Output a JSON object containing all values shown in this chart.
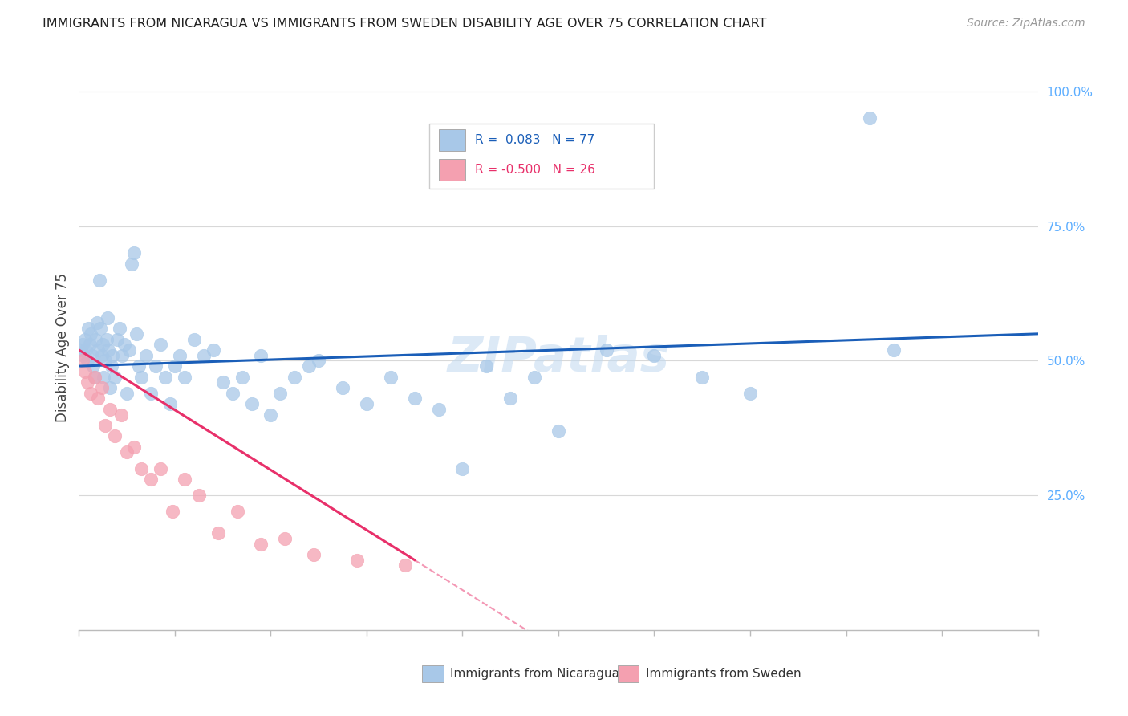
{
  "title": "IMMIGRANTS FROM NICARAGUA VS IMMIGRANTS FROM SWEDEN DISABILITY AGE OVER 75 CORRELATION CHART",
  "source": "Source: ZipAtlas.com",
  "ylabel": "Disability Age Over 75",
  "xlim": [
    0,
    20
  ],
  "ylim": [
    0,
    105
  ],
  "r_nicaragua": 0.083,
  "n_nicaragua": 77,
  "r_sweden": -0.5,
  "n_sweden": 26,
  "color_nicaragua": "#a8c8e8",
  "color_sweden": "#f4a0b0",
  "trend_color_nicaragua": "#1a5eb8",
  "trend_color_sweden": "#e8306a",
  "watermark": "ZIPatlas",
  "nic_x": [
    0.05,
    0.08,
    0.1,
    0.12,
    0.15,
    0.18,
    0.2,
    0.22,
    0.25,
    0.28,
    0.3,
    0.32,
    0.35,
    0.38,
    0.4,
    0.42,
    0.45,
    0.48,
    0.5,
    0.52,
    0.55,
    0.58,
    0.6,
    0.62,
    0.65,
    0.68,
    0.7,
    0.75,
    0.8,
    0.85,
    0.9,
    0.95,
    1.0,
    1.05,
    1.1,
    1.15,
    1.2,
    1.25,
    1.3,
    1.4,
    1.5,
    1.6,
    1.7,
    1.8,
    1.9,
    2.0,
    2.1,
    2.2,
    2.4,
    2.6,
    2.8,
    3.0,
    3.2,
    3.4,
    3.6,
    3.8,
    4.0,
    4.2,
    4.5,
    4.8,
    5.0,
    5.5,
    6.0,
    6.5,
    7.0,
    7.5,
    8.0,
    8.5,
    9.0,
    9.5,
    10.0,
    11.0,
    12.0,
    13.0,
    14.0,
    16.5,
    17.0
  ],
  "nic_y": [
    52,
    53,
    51,
    54,
    52,
    50,
    56,
    53,
    55,
    51,
    49,
    47,
    54,
    57,
    52,
    65,
    56,
    51,
    53,
    47,
    50,
    54,
    58,
    52,
    45,
    49,
    51,
    47,
    54,
    56,
    51,
    53,
    44,
    52,
    68,
    70,
    55,
    49,
    47,
    51,
    44,
    49,
    53,
    47,
    42,
    49,
    51,
    47,
    54,
    51,
    52,
    46,
    44,
    47,
    42,
    51,
    40,
    44,
    47,
    49,
    50,
    45,
    42,
    47,
    43,
    41,
    30,
    49,
    43,
    47,
    37,
    52,
    51,
    47,
    44,
    95,
    52
  ],
  "swe_x": [
    0.08,
    0.12,
    0.18,
    0.25,
    0.32,
    0.4,
    0.48,
    0.55,
    0.65,
    0.75,
    0.88,
    1.0,
    1.15,
    1.3,
    1.5,
    1.7,
    1.95,
    2.2,
    2.5,
    2.9,
    3.3,
    3.8,
    4.3,
    4.9,
    5.8,
    6.8
  ],
  "swe_y": [
    50,
    48,
    46,
    44,
    47,
    43,
    45,
    38,
    41,
    36,
    40,
    33,
    34,
    30,
    28,
    30,
    22,
    28,
    25,
    18,
    22,
    16,
    17,
    14,
    13,
    12
  ]
}
